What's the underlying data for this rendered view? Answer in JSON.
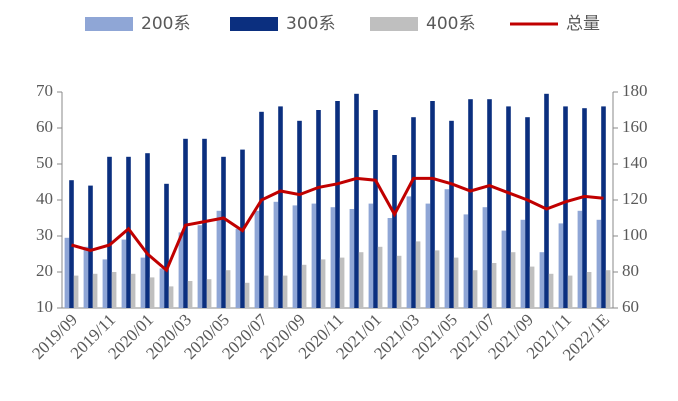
{
  "chart_data": {
    "type": "bar",
    "categories": [
      "2019/09",
      null,
      "2019/11",
      null,
      "2020/01",
      null,
      "2020/03",
      null,
      "2020/05",
      null,
      "2020/07",
      null,
      "2020/09",
      null,
      "2020/11",
      null,
      "2021/01",
      null,
      "2021/03",
      null,
      "2021/05",
      null,
      "2021/07",
      null,
      "2021/09",
      null,
      "2021/11",
      null,
      "2022/1E"
    ],
    "series": [
      {
        "name": "200系",
        "color": "#8FA6D6",
        "values": [
          29.5,
          27,
          23.5,
          29,
          24,
          21,
          31,
          33,
          37,
          32,
          37,
          39.5,
          38.5,
          39,
          38,
          37.5,
          39,
          35,
          41,
          39,
          43,
          36,
          38,
          31.5,
          34.5,
          25.5,
          33.5,
          37,
          34.5
        ]
      },
      {
        "name": "300系",
        "color": "#0B2F7F",
        "values": [
          45.5,
          44,
          52,
          52,
          53,
          44.5,
          57,
          57,
          52,
          54,
          64.5,
          66,
          62,
          65,
          67.5,
          69.5,
          65,
          52.5,
          63,
          67.5,
          62,
          68,
          68,
          66,
          63,
          69.5,
          66,
          65.5,
          66
        ]
      },
      {
        "name": "400系",
        "color": "#BFBFBF",
        "values": [
          19,
          19.5,
          20,
          19.5,
          18.5,
          16,
          17.5,
          18,
          20.5,
          17,
          19,
          19,
          22,
          23.5,
          24,
          25.5,
          27,
          24.5,
          28.5,
          26,
          24,
          20.5,
          22.5,
          25.5,
          21.5,
          19.5,
          19,
          20,
          20.5
        ]
      },
      {
        "name": "总量",
        "color": "#C00000",
        "type": "line",
        "axis": "y2",
        "values": [
          95,
          92,
          95,
          104,
          90,
          81,
          106,
          108,
          110,
          103,
          120,
          125,
          123,
          127,
          129,
          132,
          131,
          112,
          132,
          132,
          129,
          125,
          128,
          124,
          120,
          115,
          119,
          122,
          121
        ]
      }
    ],
    "ylim": [
      10,
      70
    ],
    "yticks": [
      10,
      20,
      30,
      40,
      50,
      60,
      70
    ],
    "y2lim": [
      60,
      180
    ],
    "y2ticks": [
      60,
      80,
      100,
      120,
      140,
      160,
      180
    ]
  }
}
